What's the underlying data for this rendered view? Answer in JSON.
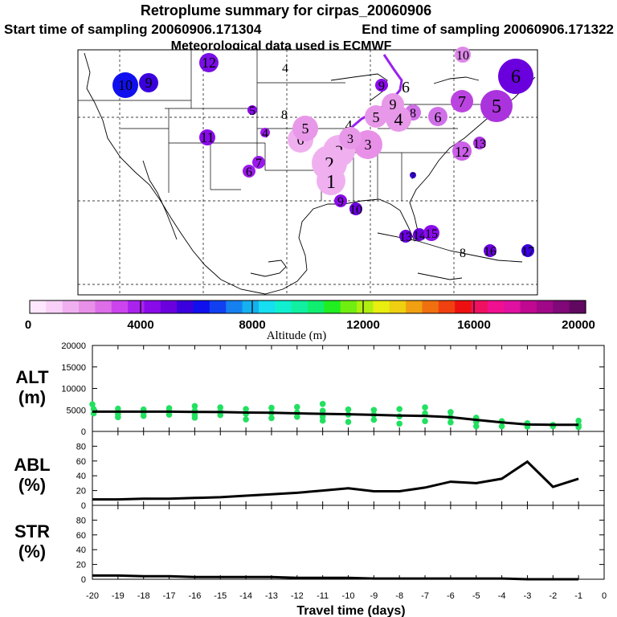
{
  "header": {
    "title": "Retroplume summary for cirpas_20060906",
    "start_label": "Start time of sampling 20060906.171304",
    "end_label": "End time of sampling 20060906.171322",
    "met_label": "Meteorological data used is ECMWF"
  },
  "colorbar": {
    "label": "Altitude (m)",
    "ticks": [
      "0",
      "4000",
      "8000",
      "12000",
      "16000",
      "20000"
    ],
    "colors": [
      "#ffe8ff",
      "#f8d0f8",
      "#f0b0f0",
      "#e890e8",
      "#dd6ee8",
      "#cc44ee",
      "#aa22ee",
      "#8a0bea",
      "#6a00dd",
      "#3a00dd",
      "#1010ee",
      "#1040f0",
      "#1580f0",
      "#15b0f0",
      "#15dff0",
      "#10f0d0",
      "#10f0a0",
      "#10ee70",
      "#20ee20",
      "#70ee10",
      "#b0ee10",
      "#e8ee10",
      "#eed010",
      "#f0a010",
      "#f07010",
      "#f04010",
      "#ee1010",
      "#f01060",
      "#f01090",
      "#e010a0",
      "#c00890",
      "#a00888",
      "#800878",
      "#600860"
    ]
  },
  "map_labels": [
    {
      "text": "12",
      "color": "#7a0ee5",
      "r": 12
    },
    {
      "text": "10",
      "color": "#1010ee",
      "r": 16
    },
    {
      "text": "9",
      "color": "#3a00dd",
      "r": 12
    },
    {
      "text": "4",
      "color": "#ffffff",
      "r": 0
    },
    {
      "text": "5",
      "color": "#8a0bea",
      "r": 6
    },
    {
      "text": "8",
      "color": "#ffffff",
      "r": 0
    },
    {
      "text": "11",
      "color": "#8a0bea",
      "r": 10
    },
    {
      "text": "4",
      "color": "#9a1aea",
      "r": 6
    },
    {
      "text": "7",
      "color": "#9a1aea",
      "r": 8
    },
    {
      "text": "6",
      "color": "#9a1aea",
      "r": 8
    },
    {
      "text": "10",
      "color": "#dd88e8",
      "r": 10
    },
    {
      "text": "9",
      "color": "#8a0bea",
      "r": 8
    },
    {
      "text": "6",
      "color": "#6a00dd",
      "r": 22
    },
    {
      "text": "7",
      "color": "#bb44e0",
      "r": 14
    },
    {
      "text": "5",
      "color": "#aa33dd",
      "r": 20
    },
    {
      "text": "6",
      "color": "#d070e8",
      "r": 12
    },
    {
      "text": "8",
      "color": "#d070e8",
      "r": 10
    },
    {
      "text": "12",
      "color": "#cc60e8",
      "r": 12
    },
    {
      "text": "13",
      "color": "#aa33dd",
      "r": 8
    },
    {
      "text": "7",
      "color": "#3a00dd",
      "r": 4
    },
    {
      "text": "9",
      "color": "#8a0bea",
      "r": 8
    },
    {
      "text": "10",
      "color": "#6a00dd",
      "r": 8
    },
    {
      "text": "13",
      "color": "#6a00dd",
      "r": 8
    },
    {
      "text": "14",
      "color": "#6a00dd",
      "r": 8
    },
    {
      "text": "15",
      "color": "#8a0bea",
      "r": 10
    },
    {
      "text": "8",
      "color": "#ffffff",
      "r": 0
    },
    {
      "text": "16",
      "color": "#6a00dd",
      "r": 8
    },
    {
      "text": "17",
      "color": "#3a00dd",
      "r": 8
    },
    {
      "text": "6",
      "color": "#f0b0f0",
      "r": 16
    },
    {
      "text": "5",
      "color": "#e898e8",
      "r": 16
    },
    {
      "text": "4",
      "color": "#e898e8",
      "r": 16
    },
    {
      "text": "9",
      "color": "#e898e8",
      "r": 14
    },
    {
      "text": "5",
      "color": "#e898e8",
      "r": 14
    },
    {
      "text": "3",
      "color": "#e890e8",
      "r": 18
    },
    {
      "text": "3",
      "color": "#f0b0f0",
      "r": 20
    },
    {
      "text": "2",
      "color": "#f0b0f0",
      "r": 22
    },
    {
      "text": "1",
      "color": "#f0b0f0",
      "r": 18
    },
    {
      "text": "4",
      "color": "#ffffff",
      "r": 0
    },
    {
      "text": "3",
      "color": "#e898e8",
      "r": 14
    },
    {
      "text": "6",
      "color": "#ffffff",
      "r": 0
    }
  ],
  "chart_data": [
    {
      "type": "line",
      "panel": "ALT",
      "ylabel": "ALT (m)",
      "xlabel": "Travel time (days)",
      "xlim": [
        -20,
        0
      ],
      "ylim": [
        0,
        20000
      ],
      "yticks": [
        0,
        5000,
        10000,
        15000,
        20000
      ],
      "x": [
        -20,
        -19,
        -18,
        -17,
        -16,
        -15,
        -14,
        -13,
        -12,
        -11,
        -10,
        -9,
        -8,
        -7,
        -6,
        -5,
        -4,
        -3,
        -2,
        -1
      ],
      "series": [
        {
          "name": "median altitude",
          "values": [
            4600,
            4600,
            4600,
            4600,
            4550,
            4500,
            4400,
            4350,
            4200,
            4100,
            4000,
            3850,
            3700,
            3600,
            3300,
            2700,
            2100,
            1600,
            1550,
            1550
          ]
        }
      ],
      "scatter_points": [
        {
          "x": -19.95,
          "y": 5200
        },
        {
          "x": -19.95,
          "y": 4200
        },
        {
          "x": -20.0,
          "y": 6300
        },
        {
          "x": -19.0,
          "y": 5300
        },
        {
          "x": -19.0,
          "y": 4000
        },
        {
          "x": -19.0,
          "y": 3300
        },
        {
          "x": -18.0,
          "y": 5100
        },
        {
          "x": -18.0,
          "y": 4400
        },
        {
          "x": -18.0,
          "y": 3600
        },
        {
          "x": -17.0,
          "y": 5400
        },
        {
          "x": -17.0,
          "y": 4700
        },
        {
          "x": -17.0,
          "y": 3900
        },
        {
          "x": -16.0,
          "y": 5900
        },
        {
          "x": -16.0,
          "y": 4800
        },
        {
          "x": -16.0,
          "y": 3800
        },
        {
          "x": -16.0,
          "y": 3200
        },
        {
          "x": -15.0,
          "y": 5600
        },
        {
          "x": -15.0,
          "y": 4600
        },
        {
          "x": -15.0,
          "y": 3800
        },
        {
          "x": -14.0,
          "y": 5200
        },
        {
          "x": -14.0,
          "y": 4100
        },
        {
          "x": -14.0,
          "y": 2800
        },
        {
          "x": -13.0,
          "y": 5500
        },
        {
          "x": -13.0,
          "y": 4300
        },
        {
          "x": -13.0,
          "y": 3100
        },
        {
          "x": -12.0,
          "y": 5700
        },
        {
          "x": -12.0,
          "y": 4400
        },
        {
          "x": -12.0,
          "y": 3400
        },
        {
          "x": -11.0,
          "y": 6400
        },
        {
          "x": -11.0,
          "y": 4800
        },
        {
          "x": -11.0,
          "y": 3400
        },
        {
          "x": -11.0,
          "y": 2500
        },
        {
          "x": -10.0,
          "y": 5100
        },
        {
          "x": -10.0,
          "y": 3900
        },
        {
          "x": -10.0,
          "y": 2200
        },
        {
          "x": -9.0,
          "y": 5000
        },
        {
          "x": -9.0,
          "y": 3900
        },
        {
          "x": -9.0,
          "y": 2700
        },
        {
          "x": -8.0,
          "y": 5200
        },
        {
          "x": -8.0,
          "y": 3500
        },
        {
          "x": -8.0,
          "y": 1800
        },
        {
          "x": -7.0,
          "y": 5600
        },
        {
          "x": -7.0,
          "y": 4200
        },
        {
          "x": -7.0,
          "y": 2400
        },
        {
          "x": -6.0,
          "y": 4500
        },
        {
          "x": -6.0,
          "y": 3300
        },
        {
          "x": -6.0,
          "y": 2100
        },
        {
          "x": -5.0,
          "y": 3200
        },
        {
          "x": -5.0,
          "y": 2200
        },
        {
          "x": -5.0,
          "y": 1200
        },
        {
          "x": -4.0,
          "y": 2400
        },
        {
          "x": -4.0,
          "y": 1200
        },
        {
          "x": -3.0,
          "y": 1900
        },
        {
          "x": -3.0,
          "y": 1100
        },
        {
          "x": -2.0,
          "y": 1500
        },
        {
          "x": -2.0,
          "y": 1200
        },
        {
          "x": -1.0,
          "y": 2500
        },
        {
          "x": -1.0,
          "y": 1500
        },
        {
          "x": -1.0,
          "y": 1000
        }
      ]
    },
    {
      "type": "line",
      "panel": "ABL",
      "ylabel": "ABL (%)",
      "xlim": [
        -20,
        0
      ],
      "ylim": [
        0,
        100
      ],
      "yticks": [
        0,
        20,
        40,
        60,
        80
      ],
      "x": [
        -20,
        -19,
        -18,
        -17,
        -16,
        -15,
        -14,
        -13,
        -12,
        -11,
        -10,
        -9,
        -8,
        -7,
        -6,
        -5,
        -4,
        -3,
        -2,
        -1
      ],
      "series": [
        {
          "name": "ABL fraction",
          "values": [
            8,
            8,
            9,
            9,
            10,
            11,
            13,
            15,
            17,
            20,
            23,
            19,
            19,
            24,
            32,
            30,
            36,
            59,
            25,
            36
          ]
        }
      ]
    },
    {
      "type": "line",
      "panel": "STR",
      "ylabel": "STR (%)",
      "xlabel": "Travel time (days)",
      "xlim": [
        -20,
        0
      ],
      "ylim": [
        0,
        100
      ],
      "yticks": [
        0,
        20,
        40,
        60,
        80
      ],
      "xticks": [
        -20,
        -19,
        -18,
        -17,
        -16,
        -15,
        -14,
        -13,
        -12,
        -11,
        -10,
        -9,
        -8,
        -7,
        -6,
        -5,
        -4,
        -3,
        -2,
        -1,
        0
      ],
      "x": [
        -20,
        -19,
        -18,
        -17,
        -16,
        -15,
        -14,
        -13,
        -12,
        -11,
        -10,
        -9,
        -8,
        -7,
        -6,
        -5,
        -4,
        -3,
        -2,
        -1
      ],
      "series": [
        {
          "name": "stratospheric fraction",
          "values": [
            5,
            5,
            4,
            4,
            3,
            3,
            3,
            3,
            2,
            2,
            2,
            1,
            1,
            1,
            1,
            1,
            1,
            0,
            0,
            0
          ]
        }
      ]
    }
  ]
}
